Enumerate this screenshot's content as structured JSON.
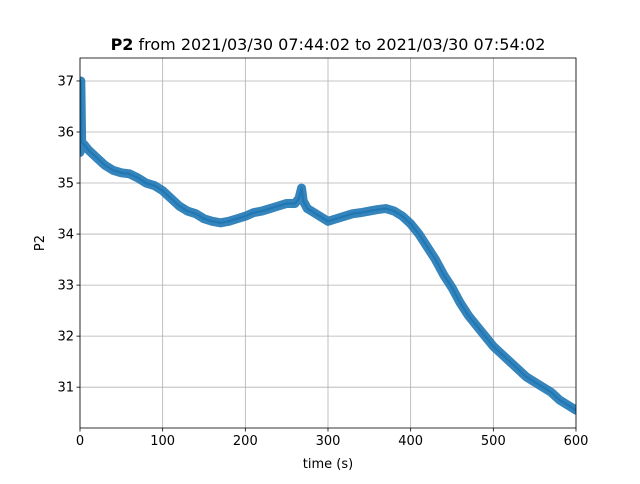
{
  "figure": {
    "title_bold": "P2",
    "title_rest": " from 2021/03/30 07:44:02 to 2021/03/30 07:54:02"
  },
  "chart_data": {
    "type": "line",
    "title": "P2 from 2021/03/30 07:44:02 to 2021/03/30 07:54:02",
    "xlabel": "time (s)",
    "ylabel": "P2",
    "xlim": [
      0,
      600
    ],
    "ylim": [
      30.2,
      37.45
    ],
    "xticks": [
      0,
      100,
      200,
      300,
      400,
      500,
      600
    ],
    "yticks": [
      31,
      32,
      33,
      34,
      35,
      36,
      37
    ],
    "grid": true,
    "line_color": "#1f77b4",
    "series": [
      {
        "name": "",
        "x": [
          0,
          1,
          2,
          5,
          10,
          20,
          30,
          40,
          50,
          60,
          70,
          80,
          90,
          100,
          110,
          120,
          130,
          140,
          150,
          160,
          170,
          180,
          190,
          200,
          210,
          220,
          230,
          240,
          250,
          260,
          265,
          268,
          270,
          275,
          280,
          290,
          300,
          310,
          320,
          330,
          340,
          350,
          360,
          370,
          380,
          390,
          400,
          410,
          420,
          430,
          440,
          450,
          460,
          470,
          480,
          490,
          500,
          510,
          520,
          530,
          540,
          550,
          560,
          570,
          580,
          590,
          600
        ],
        "y": [
          35.6,
          37.0,
          35.8,
          35.75,
          35.65,
          35.5,
          35.35,
          35.25,
          35.2,
          35.18,
          35.1,
          35.0,
          34.95,
          34.85,
          34.7,
          34.55,
          34.45,
          34.4,
          34.3,
          34.25,
          34.22,
          34.25,
          34.3,
          34.35,
          34.42,
          34.45,
          34.5,
          34.55,
          34.6,
          34.6,
          34.7,
          34.9,
          34.65,
          34.5,
          34.45,
          34.35,
          34.25,
          34.3,
          34.35,
          34.4,
          34.42,
          34.45,
          34.48,
          34.5,
          34.45,
          34.35,
          34.2,
          34.0,
          33.75,
          33.5,
          33.2,
          32.95,
          32.65,
          32.4,
          32.2,
          32.0,
          31.8,
          31.65,
          31.5,
          31.35,
          31.2,
          31.1,
          31.0,
          30.9,
          30.75,
          30.65,
          30.55
        ]
      }
    ]
  }
}
